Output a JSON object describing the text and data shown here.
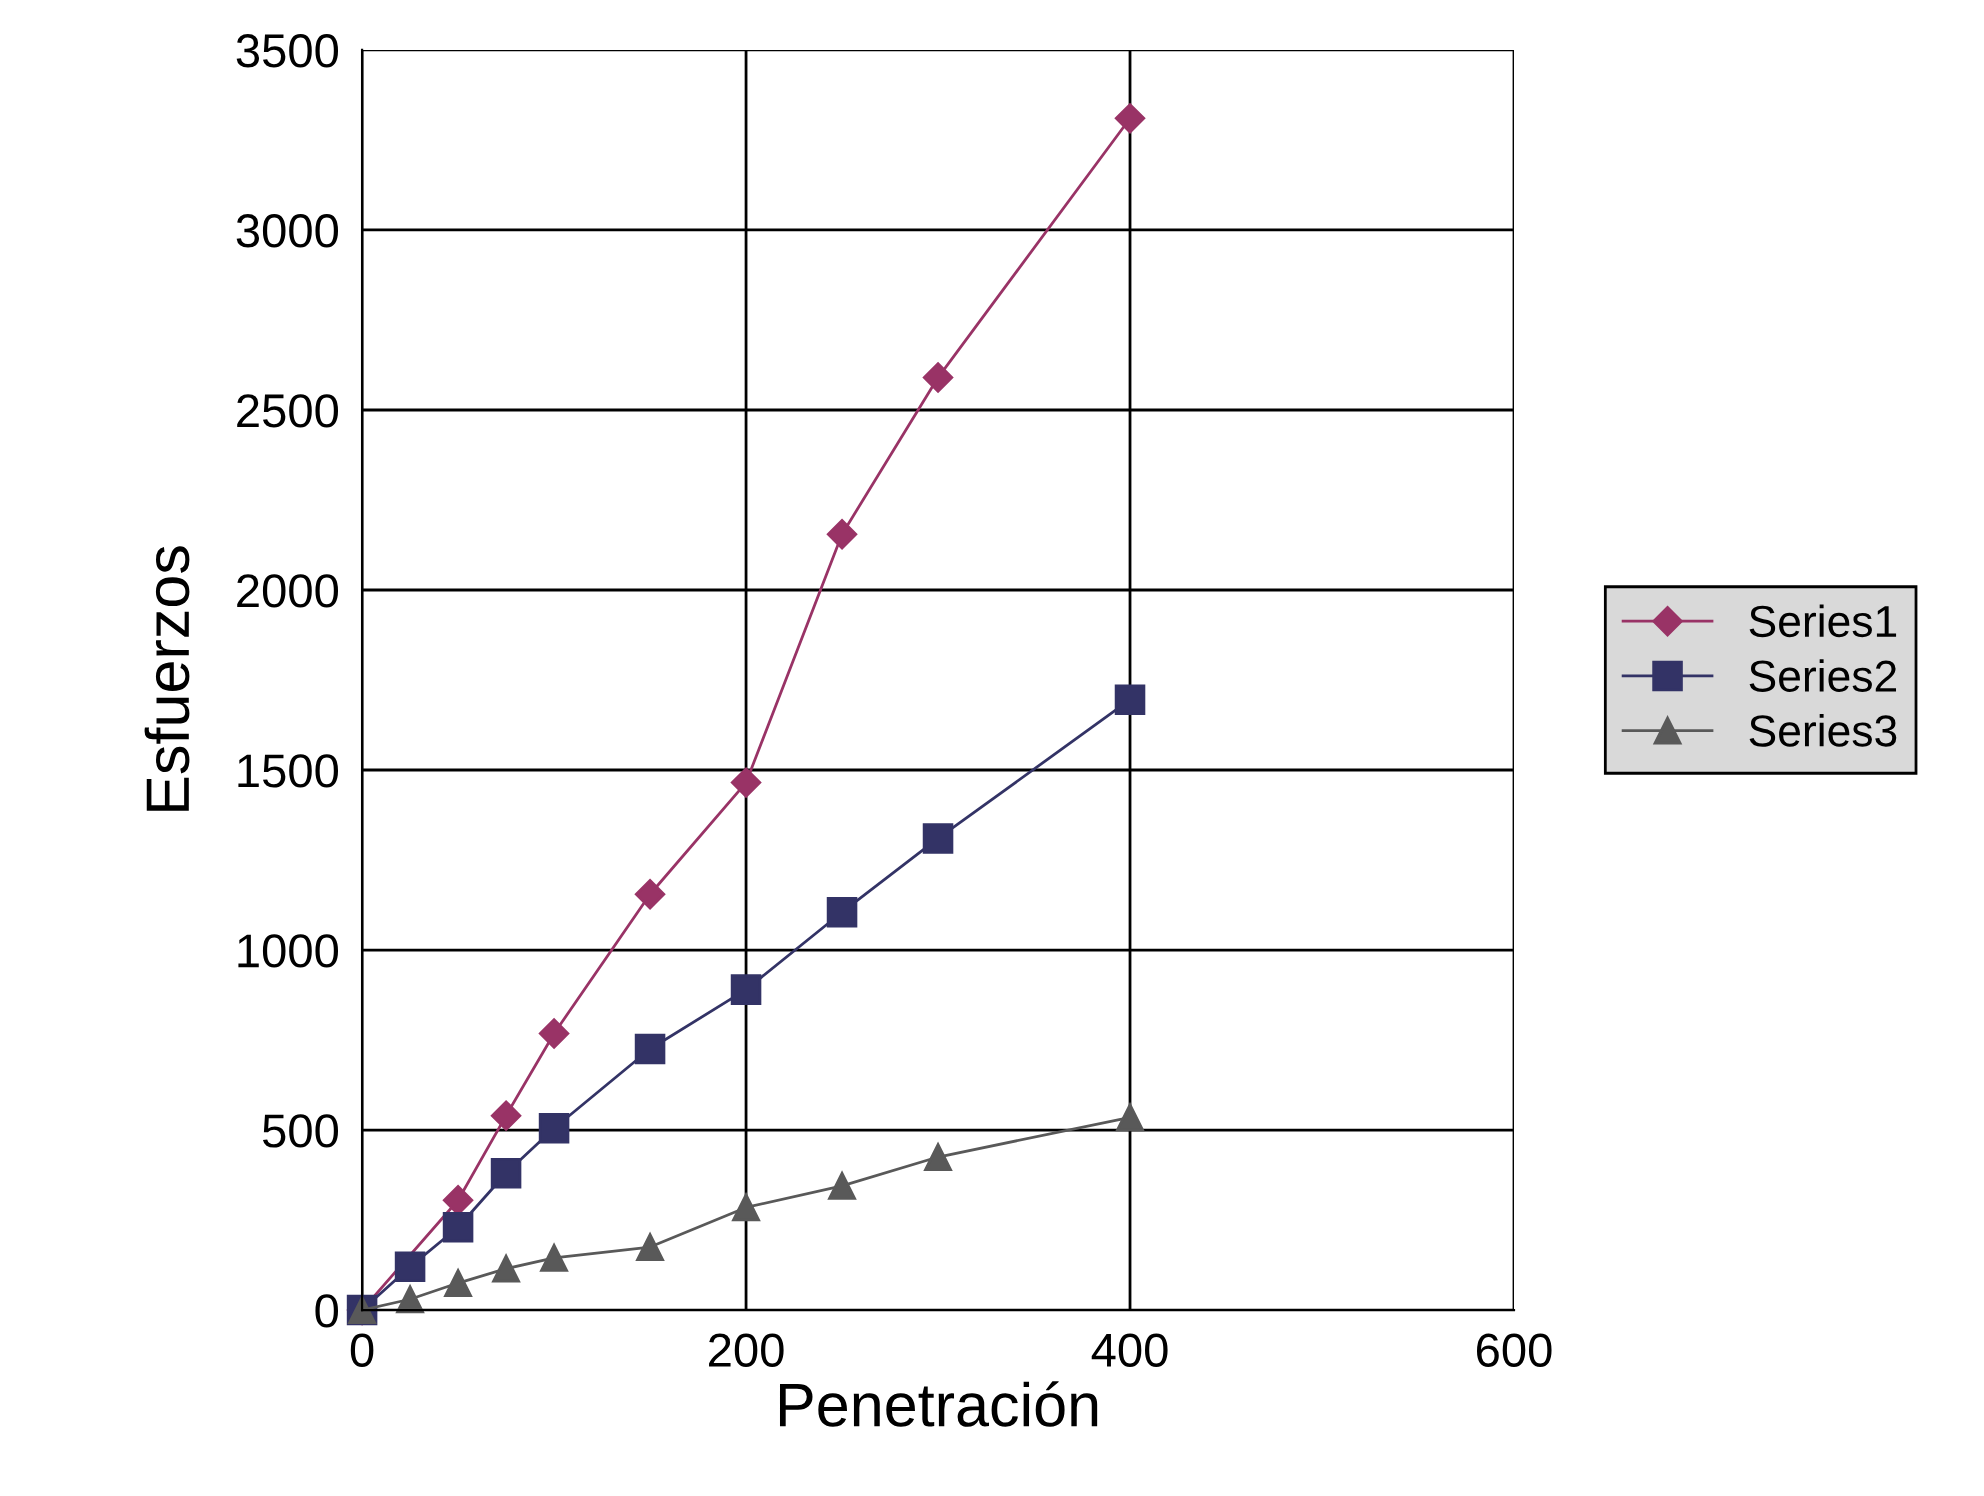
{
  "chart_data": {
    "type": "line",
    "xlabel": "Penetración",
    "ylabel": "Esfuerzos",
    "xlim": [
      0,
      600
    ],
    "xticks": [
      0,
      200,
      400,
      600
    ],
    "ylim": [
      0,
      3500
    ],
    "yticks": [
      0,
      500,
      1000,
      1500,
      2000,
      2500,
      3000,
      3500
    ],
    "grid": true,
    "legend": "right",
    "series": [
      {
        "name": "Series1",
        "color": "#993366",
        "marker": "diamond",
        "x": [
          0,
          50,
          75,
          100,
          150,
          200,
          250,
          300,
          400
        ],
        "values": [
          0,
          305,
          540,
          768,
          1155,
          1465,
          2155,
          2590,
          3310
        ]
      },
      {
        "name": "Series2",
        "color": "#333366",
        "marker": "square",
        "x": [
          0,
          25,
          50,
          75,
          100,
          150,
          200,
          250,
          300,
          400
        ],
        "values": [
          0,
          120,
          230,
          380,
          505,
          725,
          890,
          1105,
          1310,
          1695
        ]
      },
      {
        "name": "Series3",
        "color": "#595959",
        "marker": "triangle",
        "x": [
          0,
          25,
          50,
          75,
          100,
          150,
          200,
          250,
          300,
          400
        ],
        "values": [
          0,
          30,
          75,
          115,
          145,
          175,
          285,
          345,
          425,
          535
        ]
      }
    ]
  }
}
